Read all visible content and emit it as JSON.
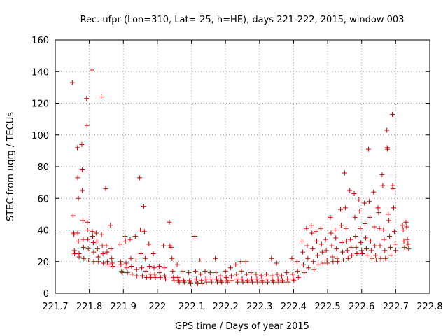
{
  "chart_data": {
    "type": "scatter",
    "title": "Rec. ufpr (Lon=310, Lat=-25, h=HE), days 221-222, 2015, window 003",
    "xlabel": "GPS time / Days of year 2015",
    "ylabel": "STEC from uqrg / TECUs",
    "xlim": [
      221.7,
      222.8
    ],
    "ylim": [
      0,
      160
    ],
    "xticks": [
      "221.7",
      "221.8",
      "221.9",
      "222",
      "222.1",
      "222.2",
      "222.3",
      "222.4",
      "222.5",
      "222.6",
      "222.7",
      "222.8"
    ],
    "yticks": [
      "0",
      "20",
      "40",
      "60",
      "80",
      "100",
      "120",
      "140",
      "160"
    ],
    "grid": true,
    "marker": "+",
    "color": "#cc0000",
    "points": [
      [
        221.75,
        133
      ],
      [
        221.752,
        49
      ],
      [
        221.754,
        38
      ],
      [
        221.755,
        37
      ],
      [
        221.756,
        27
      ],
      [
        221.757,
        25
      ],
      [
        221.765,
        92
      ],
      [
        221.766,
        73
      ],
      [
        221.768,
        60
      ],
      [
        221.766,
        38
      ],
      [
        221.768,
        33
      ],
      [
        221.77,
        25
      ],
      [
        221.77,
        23
      ],
      [
        221.778,
        94
      ],
      [
        221.779,
        78
      ],
      [
        221.779,
        65
      ],
      [
        221.781,
        46
      ],
      [
        221.782,
        34
      ],
      [
        221.783,
        29
      ],
      [
        221.784,
        22
      ],
      [
        221.792,
        123
      ],
      [
        221.793,
        106
      ],
      [
        221.794,
        45
      ],
      [
        221.795,
        40
      ],
      [
        221.796,
        34
      ],
      [
        221.797,
        28
      ],
      [
        221.798,
        21
      ],
      [
        221.808,
        141
      ],
      [
        221.809,
        39
      ],
      [
        221.81,
        36
      ],
      [
        221.812,
        32
      ],
      [
        221.813,
        26
      ],
      [
        221.813,
        20
      ],
      [
        221.82,
        38
      ],
      [
        221.822,
        33
      ],
      [
        221.824,
        28
      ],
      [
        221.826,
        23
      ],
      [
        221.827,
        20
      ],
      [
        221.835,
        124
      ],
      [
        221.836,
        37
      ],
      [
        221.838,
        30
      ],
      [
        221.84,
        25
      ],
      [
        221.841,
        19
      ],
      [
        221.848,
        66
      ],
      [
        221.85,
        30
      ],
      [
        221.852,
        26
      ],
      [
        221.853,
        20
      ],
      [
        221.855,
        18
      ],
      [
        221.862,
        43
      ],
      [
        221.864,
        28
      ],
      [
        221.866,
        22
      ],
      [
        221.867,
        19
      ],
      [
        221.869,
        17
      ],
      [
        221.89,
        31
      ],
      [
        221.892,
        20
      ],
      [
        221.893,
        18
      ],
      [
        221.895,
        14
      ],
      [
        221.897,
        13
      ],
      [
        221.905,
        36
      ],
      [
        221.906,
        33
      ],
      [
        221.908,
        19
      ],
      [
        221.91,
        16
      ],
      [
        221.912,
        13
      ],
      [
        221.92,
        34
      ],
      [
        221.922,
        22
      ],
      [
        221.924,
        17
      ],
      [
        221.926,
        12
      ],
      [
        221.935,
        36
      ],
      [
        221.937,
        21
      ],
      [
        221.939,
        15
      ],
      [
        221.94,
        11
      ],
      [
        221.948,
        73
      ],
      [
        221.95,
        40
      ],
      [
        221.952,
        25
      ],
      [
        221.954,
        16
      ],
      [
        221.956,
        11
      ],
      [
        221.96,
        55
      ],
      [
        221.962,
        39
      ],
      [
        221.964,
        22
      ],
      [
        221.966,
        14
      ],
      [
        221.968,
        10
      ],
      [
        221.975,
        31
      ],
      [
        221.977,
        17
      ],
      [
        221.979,
        12
      ],
      [
        221.981,
        10
      ],
      [
        221.988,
        25
      ],
      [
        221.99,
        16
      ],
      [
        221.992,
        12
      ],
      [
        221.994,
        10
      ],
      [
        222.005,
        17
      ],
      [
        222.007,
        13
      ],
      [
        222.009,
        10
      ],
      [
        222.018,
        30
      ],
      [
        222.02,
        16
      ],
      [
        222.022,
        11
      ],
      [
        222.024,
        9
      ],
      [
        222.035,
        45
      ],
      [
        222.037,
        30
      ],
      [
        222.04,
        29
      ],
      [
        222.043,
        22
      ],
      [
        222.045,
        14
      ],
      [
        222.047,
        10
      ],
      [
        222.049,
        8
      ],
      [
        222.058,
        18
      ],
      [
        222.06,
        10
      ],
      [
        222.062,
        8
      ],
      [
        222.064,
        7
      ],
      [
        222.075,
        14
      ],
      [
        222.077,
        8
      ],
      [
        222.079,
        7
      ],
      [
        222.092,
        13
      ],
      [
        222.094,
        8
      ],
      [
        222.096,
        7
      ],
      [
        222.098,
        6
      ],
      [
        222.11,
        36
      ],
      [
        222.112,
        14
      ],
      [
        222.114,
        9
      ],
      [
        222.116,
        7
      ],
      [
        222.118,
        6
      ],
      [
        222.125,
        21
      ],
      [
        222.127,
        12
      ],
      [
        222.129,
        8
      ],
      [
        222.131,
        6
      ],
      [
        222.14,
        14
      ],
      [
        222.142,
        9
      ],
      [
        222.144,
        7
      ],
      [
        222.155,
        13
      ],
      [
        222.157,
        9
      ],
      [
        222.159,
        7
      ],
      [
        222.17,
        22
      ],
      [
        222.172,
        13
      ],
      [
        222.174,
        9
      ],
      [
        222.176,
        7
      ],
      [
        222.185,
        11
      ],
      [
        222.187,
        8
      ],
      [
        222.189,
        7
      ],
      [
        222.2,
        14
      ],
      [
        222.202,
        10
      ],
      [
        222.204,
        8
      ],
      [
        222.206,
        7
      ],
      [
        222.215,
        16
      ],
      [
        222.217,
        11
      ],
      [
        222.219,
        8
      ],
      [
        222.23,
        18
      ],
      [
        222.232,
        12
      ],
      [
        222.234,
        9
      ],
      [
        222.236,
        7
      ],
      [
        222.245,
        20
      ],
      [
        222.247,
        14
      ],
      [
        222.249,
        9
      ],
      [
        222.251,
        7
      ],
      [
        222.26,
        20
      ],
      [
        222.262,
        12
      ],
      [
        222.264,
        8
      ],
      [
        222.266,
        7
      ],
      [
        222.275,
        13
      ],
      [
        222.277,
        9
      ],
      [
        222.279,
        7
      ],
      [
        222.29,
        12
      ],
      [
        222.292,
        9
      ],
      [
        222.294,
        7
      ],
      [
        222.305,
        11
      ],
      [
        222.307,
        8
      ],
      [
        222.309,
        7
      ],
      [
        222.32,
        12
      ],
      [
        222.322,
        9
      ],
      [
        222.324,
        7
      ],
      [
        222.335,
        22
      ],
      [
        222.337,
        11
      ],
      [
        222.339,
        8
      ],
      [
        222.341,
        7
      ],
      [
        222.35,
        19
      ],
      [
        222.352,
        12
      ],
      [
        222.354,
        9
      ],
      [
        222.356,
        7
      ],
      [
        222.365,
        11
      ],
      [
        222.367,
        8
      ],
      [
        222.369,
        7
      ],
      [
        222.38,
        13
      ],
      [
        222.382,
        9
      ],
      [
        222.384,
        7
      ],
      [
        222.395,
        22
      ],
      [
        222.397,
        12
      ],
      [
        222.399,
        9
      ],
      [
        222.401,
        8
      ],
      [
        222.41,
        20
      ],
      [
        222.412,
        14
      ],
      [
        222.414,
        10
      ],
      [
        222.425,
        33
      ],
      [
        222.427,
        26
      ],
      [
        222.429,
        18
      ],
      [
        222.431,
        13
      ],
      [
        222.438,
        41
      ],
      [
        222.44,
        30
      ],
      [
        222.442,
        22
      ],
      [
        222.444,
        16
      ],
      [
        222.452,
        43
      ],
      [
        222.454,
        38
      ],
      [
        222.456,
        28
      ],
      [
        222.458,
        20
      ],
      [
        222.46,
        15
      ],
      [
        222.466,
        39
      ],
      [
        222.468,
        33
      ],
      [
        222.47,
        24
      ],
      [
        222.472,
        18
      ],
      [
        222.48,
        41
      ],
      [
        222.482,
        31
      ],
      [
        222.484,
        26
      ],
      [
        222.486,
        19
      ],
      [
        222.494,
        34
      ],
      [
        222.496,
        27
      ],
      [
        222.498,
        21
      ],
      [
        222.5,
        19
      ],
      [
        222.508,
        48
      ],
      [
        222.51,
        38
      ],
      [
        222.512,
        30
      ],
      [
        222.514,
        23
      ],
      [
        222.516,
        20
      ],
      [
        222.522,
        40
      ],
      [
        222.524,
        35
      ],
      [
        222.526,
        28
      ],
      [
        222.528,
        22
      ],
      [
        222.53,
        20
      ],
      [
        222.538,
        53
      ],
      [
        222.54,
        43
      ],
      [
        222.542,
        32
      ],
      [
        222.544,
        26
      ],
      [
        222.546,
        21
      ],
      [
        222.55,
        76
      ],
      [
        222.552,
        54
      ],
      [
        222.554,
        41
      ],
      [
        222.556,
        33
      ],
      [
        222.558,
        27
      ],
      [
        222.56,
        22
      ],
      [
        222.565,
        65
      ],
      [
        222.567,
        34
      ],
      [
        222.569,
        29
      ],
      [
        222.571,
        24
      ],
      [
        222.578,
        63
      ],
      [
        222.58,
        48
      ],
      [
        222.582,
        36
      ],
      [
        222.584,
        29
      ],
      [
        222.586,
        25
      ],
      [
        222.592,
        59
      ],
      [
        222.594,
        52
      ],
      [
        222.596,
        41
      ],
      [
        222.598,
        32
      ],
      [
        222.6,
        27
      ],
      [
        222.602,
        25
      ],
      [
        222.608,
        57
      ],
      [
        222.61,
        44
      ],
      [
        222.612,
        35
      ],
      [
        222.614,
        28
      ],
      [
        222.616,
        24
      ],
      [
        222.62,
        91
      ],
      [
        222.622,
        58
      ],
      [
        222.624,
        48
      ],
      [
        222.626,
        33
      ],
      [
        222.628,
        27
      ],
      [
        222.63,
        22
      ],
      [
        222.635,
        64
      ],
      [
        222.637,
        42
      ],
      [
        222.639,
        30
      ],
      [
        222.641,
        24
      ],
      [
        222.643,
        21
      ],
      [
        222.648,
        54
      ],
      [
        222.65,
        51
      ],
      [
        222.652,
        41
      ],
      [
        222.654,
        30
      ],
      [
        222.656,
        22
      ],
      [
        222.66,
        75
      ],
      [
        222.662,
        68
      ],
      [
        222.664,
        40
      ],
      [
        222.666,
        34
      ],
      [
        222.668,
        27
      ],
      [
        222.67,
        22
      ],
      [
        222.674,
        103
      ],
      [
        222.675,
        92
      ],
      [
        222.676,
        91
      ],
      [
        222.678,
        50
      ],
      [
        222.68,
        46
      ],
      [
        222.682,
        36
      ],
      [
        222.684,
        29
      ],
      [
        222.686,
        24
      ],
      [
        222.69,
        113
      ],
      [
        222.691,
        68
      ],
      [
        222.692,
        66
      ],
      [
        222.694,
        54
      ],
      [
        222.696,
        39
      ],
      [
        222.698,
        31
      ],
      [
        222.7,
        27
      ],
      [
        222.72,
        43
      ],
      [
        222.722,
        40
      ],
      [
        222.724,
        33
      ],
      [
        222.726,
        29
      ],
      [
        222.73,
        45
      ],
      [
        222.732,
        42
      ],
      [
        222.734,
        34
      ],
      [
        222.736,
        31
      ],
      [
        222.738,
        28
      ]
    ]
  }
}
